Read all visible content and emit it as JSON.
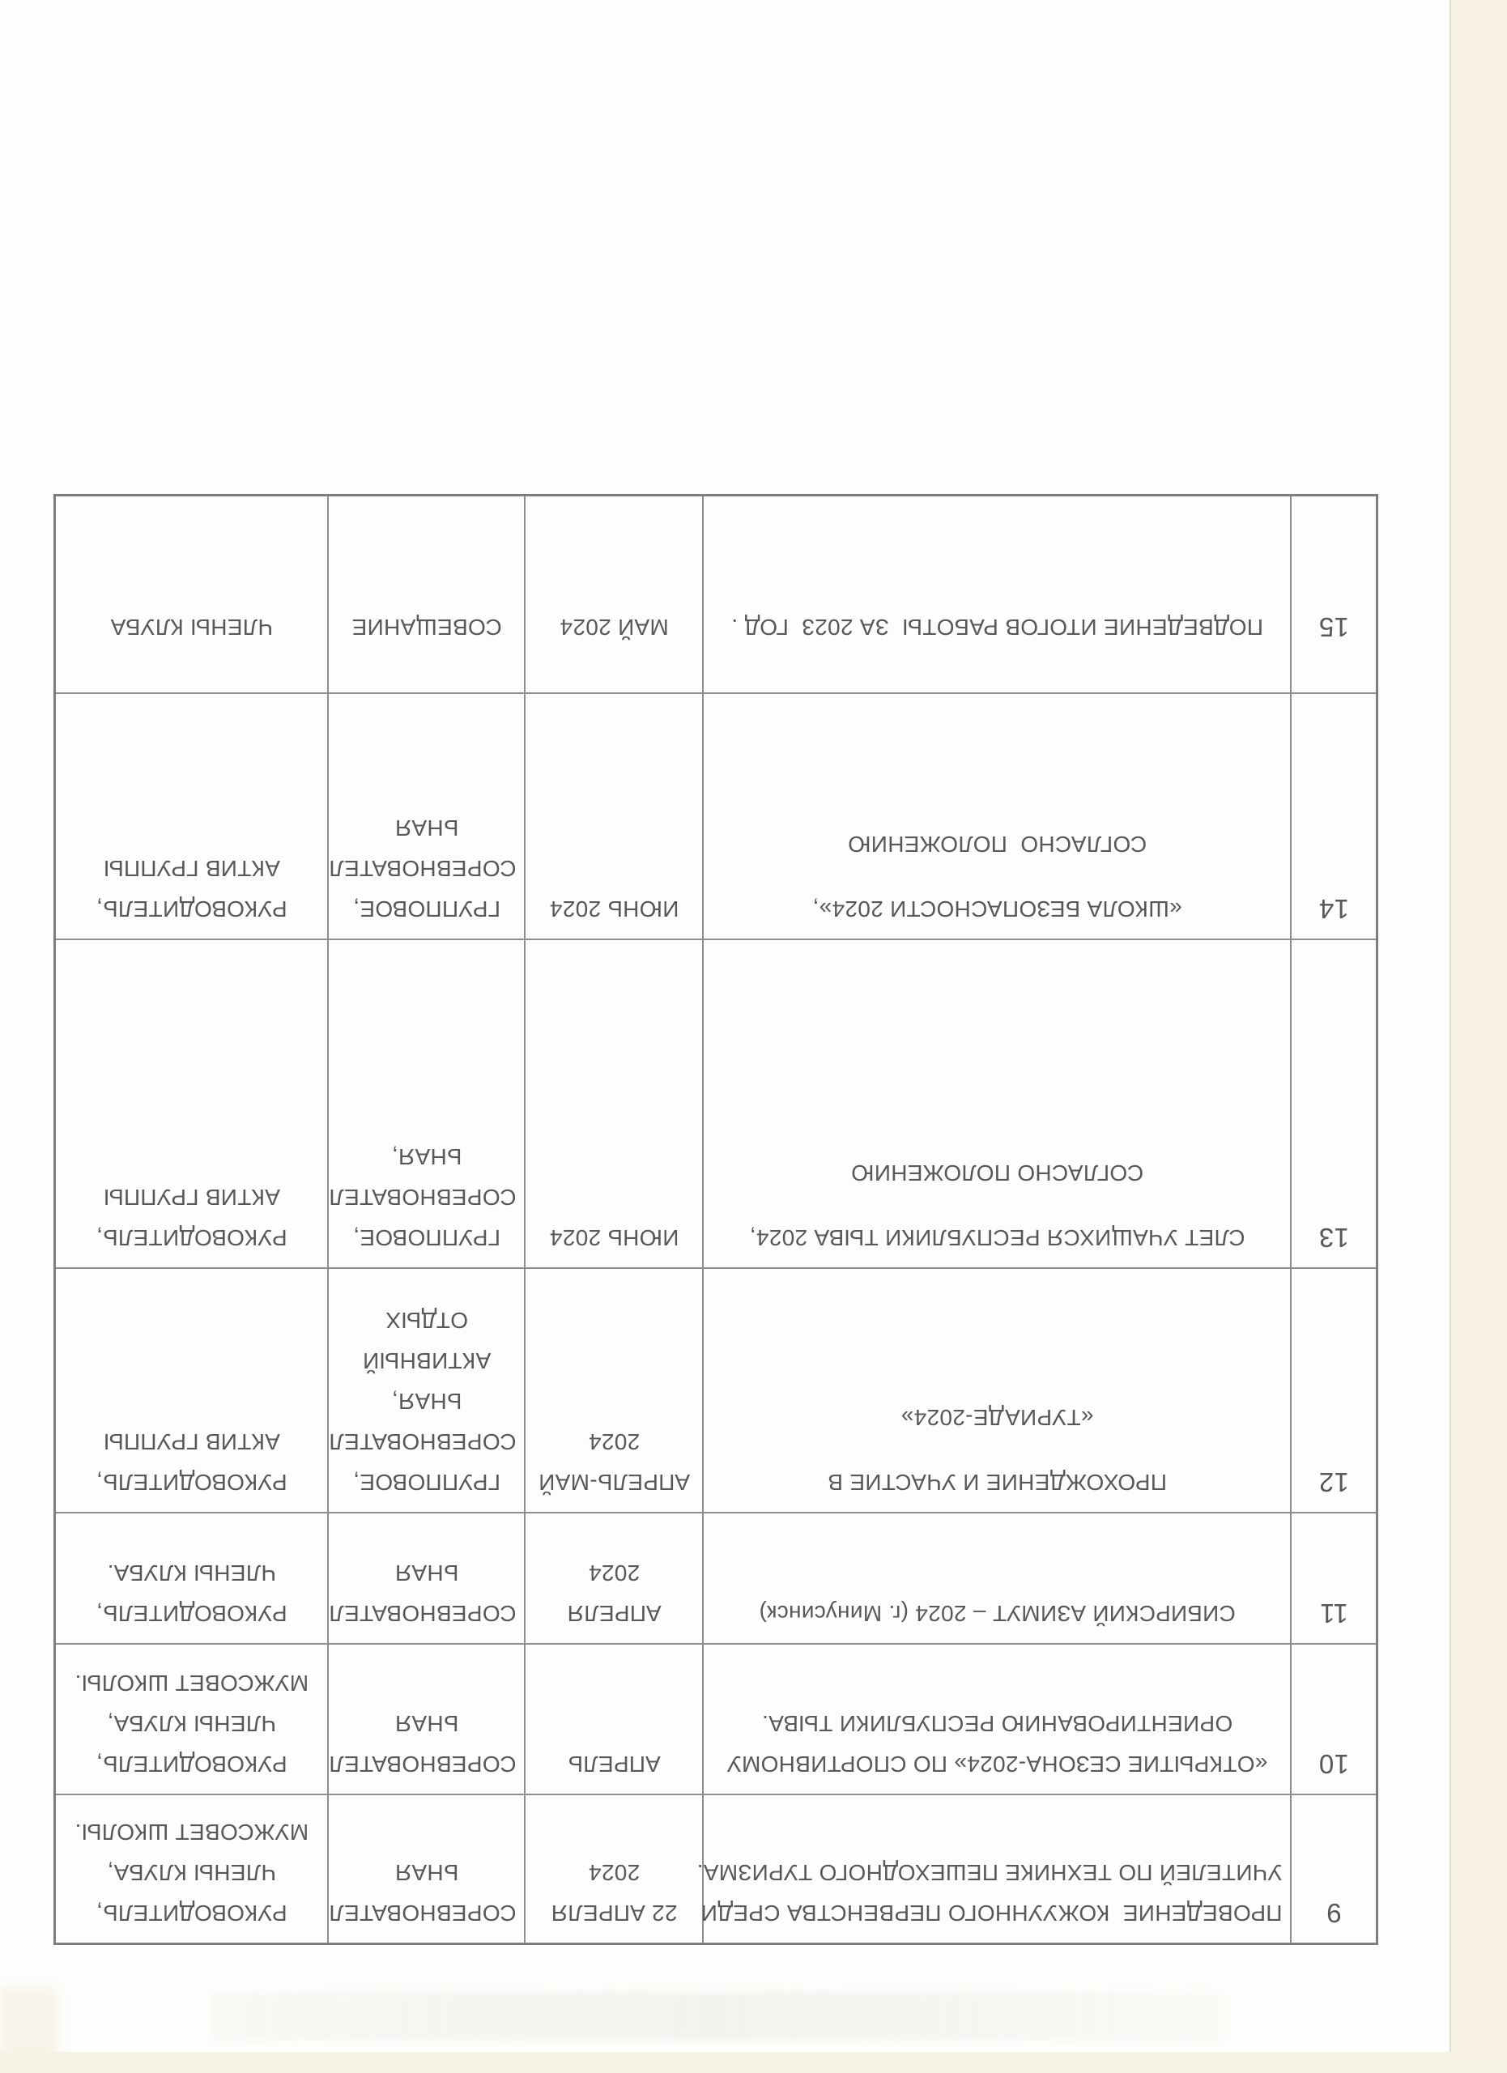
{
  "colors": {
    "paper": "#fdfdfb",
    "edge_strip": "#f6f1e3",
    "ink": "#585858",
    "table_line": "#8d8d8d"
  },
  "table": {
    "rows": [
      {
        "num": "9",
        "description_lines": [
          "ПРОВЕДЕНИЕ  КОЖУУННОГО ПЕРВЕНСТВА СРЕДИ",
          "УЧИТЕЛЕЙ ПО ТЕХНИКЕ ПЕШЕХОДНОГО ТУРИЗМА."
        ],
        "date_lines": [
          "22 АПРЕЛЯ",
          "2024"
        ],
        "form_lines": [
          "СОРЕВНОВАТЕЛ",
          "ЬНАЯ"
        ],
        "responsible_lines": [
          "РУКОВОДИТЕЛЬ,",
          "ЧЛЕНЫ КЛУБА,",
          "МУЖСОВЕТ ШКОЛЫ."
        ]
      },
      {
        "num": "10",
        "description_lines": [
          "«ОТКРЫТИЕ СЕЗОНА-2024» ПО СПОРТИВНОМУ",
          "ОРИЕНТИРОВАНИЮ РЕСПУБЛИКИ ТЫВА."
        ],
        "date_lines": [
          "АПРЕЛЬ"
        ],
        "form_lines": [
          "СОРЕВНОВАТЕЛ",
          "ЬНАЯ"
        ],
        "responsible_lines": [
          "РУКОВОДИТЕЛЬ,",
          "ЧЛЕНЫ КЛУБА,",
          "МУЖСОВЕТ ШКОЛЫ."
        ]
      },
      {
        "num": "11",
        "description_lines": [
          "СИБИРСКИЙ АЗИМУТ – 2024 (г. Минусинск)"
        ],
        "date_lines": [
          "АПРЕЛЯ",
          "2024"
        ],
        "form_lines": [
          "СОРЕВНОВАТЕЛ",
          "ЬНАЯ"
        ],
        "responsible_lines": [
          "РУКОВОДИТЕЛЬ,",
          "ЧЛЕНЫ КЛУБА."
        ]
      },
      {
        "num": "12",
        "description_lines": [
          "ПРОХОЖДЕНИЕ И УЧАСТИЕ В",
          "",
          "«ТУРИАДЕ-2024»"
        ],
        "date_lines": [
          "АПРЕЛЬ-МАЙ",
          "2024"
        ],
        "form_lines": [
          "ГРУППОВОЕ,",
          "СОРЕВНОВАТЕЛ",
          "ЬНАЯ,",
          "АКТИВНЫЙ",
          "ОТДЫХ"
        ],
        "responsible_lines": [
          "РУКОВОДИТЕЛЬ,",
          "АКТИВ ГРУППЫ"
        ]
      },
      {
        "num": "13",
        "description_lines": [
          "СЛЕТ УЧАЩИХСЯ РЕСПУБЛИКИ ТЫВА 2024,",
          "",
          "СОГЛАСНО ПОЛОЖЕНИЮ"
        ],
        "date_lines": [
          "ИЮНЬ 2024"
        ],
        "form_lines": [
          "ГРУППОВОЕ,",
          "СОРЕВНОВАТЕЛ",
          "ЬНАЯ,"
        ],
        "responsible_lines": [
          "РУКОВОДИТЕЛЬ,",
          "АКТИВ ГРУППЫ"
        ]
      },
      {
        "num": "14",
        "description_lines": [
          "«ШКОЛА БЕЗОПАСНОСТИ 2024»,",
          "",
          "СОГЛАСНО  ПОЛОЖЕНИЮ"
        ],
        "date_lines": [
          "ИЮНЬ 2024"
        ],
        "form_lines": [
          "ГРУППОВОЕ,",
          "СОРЕВНОВАТЕЛ",
          "ЬНАЯ"
        ],
        "responsible_lines": [
          "РУКОВОДИТЕЛЬ,",
          "АКТИВ ГРУППЫ"
        ]
      },
      {
        "num": "15",
        "offset": true,
        "description_lines": [
          "ПОДВЕДЕНИЕ ИТОГОВ РАБОТЫ  ЗА 2023  ГОД ."
        ],
        "date_lines": [
          "МАЙ 2024"
        ],
        "form_lines": [
          "СОВЕЩАНИЕ"
        ],
        "responsible_lines": [
          "ЧЛЕНЫ КЛУБА"
        ]
      }
    ]
  }
}
